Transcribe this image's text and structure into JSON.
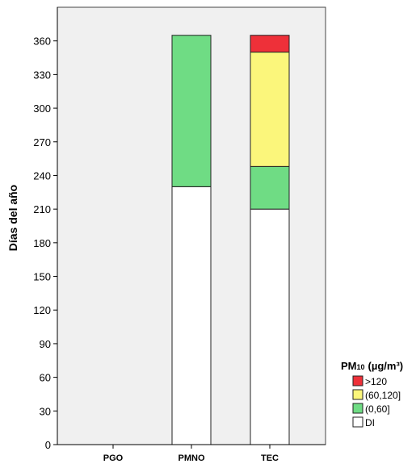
{
  "chart_data": {
    "type": "bar",
    "stacked": true,
    "categories": [
      "PGO",
      "PMNO",
      "TEC"
    ],
    "ylabel": "Días del año",
    "xlabel": "",
    "ylim": [
      0,
      390
    ],
    "yticks": [
      0,
      30,
      60,
      90,
      120,
      150,
      180,
      210,
      240,
      270,
      300,
      330,
      360
    ],
    "grid": false,
    "legend_position": "right",
    "legend_title": {
      "main": "PM",
      "subscript": "10",
      "unit": "(µg/m³)"
    },
    "series": [
      {
        "name": "DI",
        "color": "#ffffff",
        "values": [
          0,
          230,
          210
        ]
      },
      {
        "name": "(0,60]",
        "color": "#6fdc84",
        "values": [
          0,
          135,
          38
        ]
      },
      {
        "name": "(60,120]",
        "color": "#fbf67b",
        "values": [
          0,
          0,
          102
        ]
      },
      {
        "name": ">120",
        "color": "#ee3039",
        "values": [
          0,
          0,
          15
        ]
      }
    ],
    "plot_background": "#f0f0f0"
  }
}
